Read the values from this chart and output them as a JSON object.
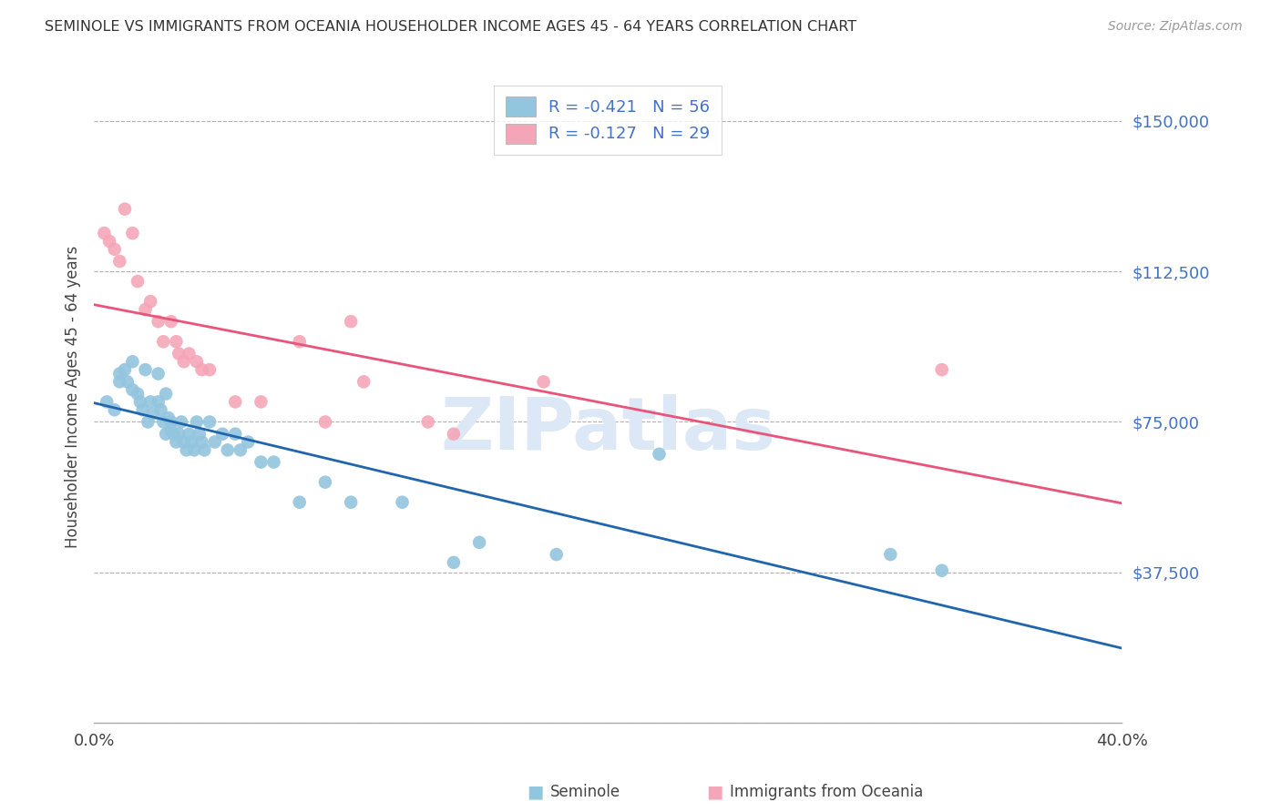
{
  "title": "SEMINOLE VS IMMIGRANTS FROM OCEANIA HOUSEHOLDER INCOME AGES 45 - 64 YEARS CORRELATION CHART",
  "source": "Source: ZipAtlas.com",
  "ylabel": "Householder Income Ages 45 - 64 years",
  "xlim": [
    0.0,
    0.4
  ],
  "ylim": [
    0,
    162500
  ],
  "yticks": [
    0,
    37500,
    75000,
    112500,
    150000
  ],
  "ytick_labels": [
    "",
    "$37,500",
    "$75,000",
    "$112,500",
    "$150,000"
  ],
  "xticks": [
    0.0,
    0.05,
    0.1,
    0.15,
    0.2,
    0.25,
    0.3,
    0.35,
    0.4
  ],
  "xtick_labels": [
    "0.0%",
    "",
    "",
    "",
    "",
    "",
    "",
    "",
    "40.0%"
  ],
  "legend_r1": "R = -0.421",
  "legend_n1": "N = 56",
  "legend_r2": "R = -0.127",
  "legend_n2": "N = 29",
  "blue_color": "#92c5de",
  "pink_color": "#f4a6b8",
  "blue_line_color": "#2166ac",
  "pink_line_color": "#e8547a",
  "axis_label_color": "#4472c4",
  "grid_color": "#b0b0b0",
  "watermark_color": "#dce8f5",
  "seminole_x": [
    0.005,
    0.008,
    0.01,
    0.01,
    0.012,
    0.013,
    0.015,
    0.015,
    0.017,
    0.018,
    0.019,
    0.02,
    0.021,
    0.022,
    0.023,
    0.025,
    0.025,
    0.026,
    0.027,
    0.028,
    0.028,
    0.029,
    0.03,
    0.03,
    0.031,
    0.032,
    0.033,
    0.034,
    0.035,
    0.036,
    0.037,
    0.038,
    0.039,
    0.04,
    0.041,
    0.042,
    0.043,
    0.045,
    0.047,
    0.05,
    0.052,
    0.055,
    0.057,
    0.06,
    0.065,
    0.07,
    0.08,
    0.09,
    0.1,
    0.12,
    0.14,
    0.15,
    0.18,
    0.22,
    0.31,
    0.33
  ],
  "seminole_y": [
    80000,
    78000,
    87000,
    85000,
    88000,
    85000,
    90000,
    83000,
    82000,
    80000,
    78000,
    88000,
    75000,
    80000,
    77000,
    87000,
    80000,
    78000,
    75000,
    82000,
    72000,
    76000,
    75000,
    73000,
    72000,
    70000,
    72000,
    75000,
    70000,
    68000,
    72000,
    70000,
    68000,
    75000,
    72000,
    70000,
    68000,
    75000,
    70000,
    72000,
    68000,
    72000,
    68000,
    70000,
    65000,
    65000,
    55000,
    60000,
    55000,
    55000,
    40000,
    45000,
    42000,
    67000,
    42000,
    38000
  ],
  "oceania_x": [
    0.004,
    0.006,
    0.008,
    0.01,
    0.012,
    0.015,
    0.017,
    0.02,
    0.022,
    0.025,
    0.027,
    0.03,
    0.032,
    0.033,
    0.035,
    0.037,
    0.04,
    0.042,
    0.045,
    0.055,
    0.065,
    0.08,
    0.09,
    0.1,
    0.105,
    0.13,
    0.14,
    0.175,
    0.33
  ],
  "oceania_y": [
    122000,
    120000,
    118000,
    115000,
    128000,
    122000,
    110000,
    103000,
    105000,
    100000,
    95000,
    100000,
    95000,
    92000,
    90000,
    92000,
    90000,
    88000,
    88000,
    80000,
    80000,
    95000,
    75000,
    100000,
    85000,
    75000,
    72000,
    85000,
    88000
  ]
}
